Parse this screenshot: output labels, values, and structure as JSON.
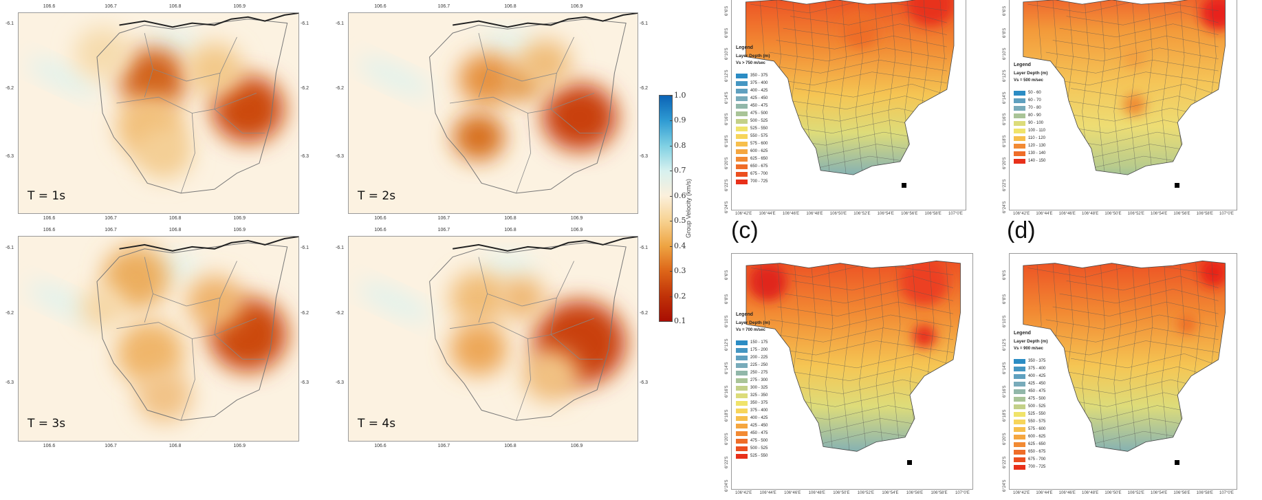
{
  "velocity_maps": {
    "panels": [
      {
        "period": "T = 1s"
      },
      {
        "period": "T = 2s"
      },
      {
        "period": "T = 3s"
      },
      {
        "period": "T = 4s"
      }
    ],
    "lon_ticks": [
      "106.6",
      "106.7",
      "106.8",
      "106.9"
    ],
    "lat_ticks": [
      "-6.1",
      "-6.2",
      "-6.3"
    ]
  },
  "colorbar": {
    "title": "Group Velocity (km/s)",
    "ticks": [
      "1.0",
      "0.9",
      "0.8",
      "0.7",
      "0.6",
      "0.5",
      "0.4",
      "0.3",
      "0.2",
      "0.1"
    ],
    "colors": [
      "#0b63b5",
      "#2f9bd3",
      "#7fd0e3",
      "#d7f1ef",
      "#fbf0dc",
      "#f7d291",
      "#eea442",
      "#dd6518",
      "#c03208",
      "#a80e02"
    ]
  },
  "depth_maps": {
    "lon_ticks": [
      "106°42'E",
      "106°44'E",
      "106°46'E",
      "106°48'E",
      "106°50'E",
      "106°52'E",
      "106°54'E",
      "106°56'E",
      "106°58'E",
      "107°0'E"
    ],
    "lat_ticks": [
      "6°6'S",
      "6°8'S",
      "6°10'S",
      "6°12'S",
      "6°14'S",
      "6°16'S",
      "6°18'S",
      "6°20'S",
      "6°22'S",
      "6°24'S"
    ],
    "panels": [
      {
        "label": "",
        "legend_title": "Legend",
        "legend_sub": "Layer Depth (m)",
        "legend_vs": "Vs > 750 m/sec",
        "items": [
          "350 - 375",
          "375 - 400",
          "400 - 425",
          "425 - 450",
          "450 - 475",
          "475 - 500",
          "500 - 525",
          "525 - 550",
          "550 - 575",
          "575 - 600",
          "600 - 625",
          "625 - 650",
          "650 - 675",
          "675 - 700",
          "700 - 725"
        ]
      },
      {
        "label": "",
        "legend_title": "Legend",
        "legend_sub": "Layer Depth (m)",
        "legend_vs": "Vs = 500 m/sec",
        "items": [
          "50 - 60",
          "60 - 70",
          "70 - 80",
          "80 - 90",
          "90 - 100",
          "100 - 110",
          "110 - 120",
          "120 - 130",
          "130 - 140",
          "140 - 150"
        ]
      },
      {
        "label": "(c)",
        "legend_title": "Legend",
        "legend_sub": "Layer Depth (m)",
        "legend_vs": "Vs = 700 m/sec",
        "items": [
          "150 - 175",
          "175 - 200",
          "200 - 225",
          "225 - 250",
          "250 - 275",
          "275 - 300",
          "300 - 325",
          "325 - 350",
          "350 - 375",
          "375 - 400",
          "400 - 425",
          "425 - 450",
          "450 - 475",
          "475 - 500",
          "500 - 525",
          "525 - 550"
        ]
      },
      {
        "label": "(d)",
        "legend_title": "Legend",
        "legend_sub": "Layer Depth (m)",
        "legend_vs": "Vs = 900 m/sec",
        "items": [
          "350 - 375",
          "375 - 400",
          "400 - 425",
          "425 - 450",
          "450 - 475",
          "475 - 500",
          "500 - 525",
          "525 - 550",
          "550 - 575",
          "575 - 600",
          "600 - 625",
          "625 - 650",
          "650 - 675",
          "675 - 700",
          "700 - 725"
        ]
      }
    ]
  }
}
